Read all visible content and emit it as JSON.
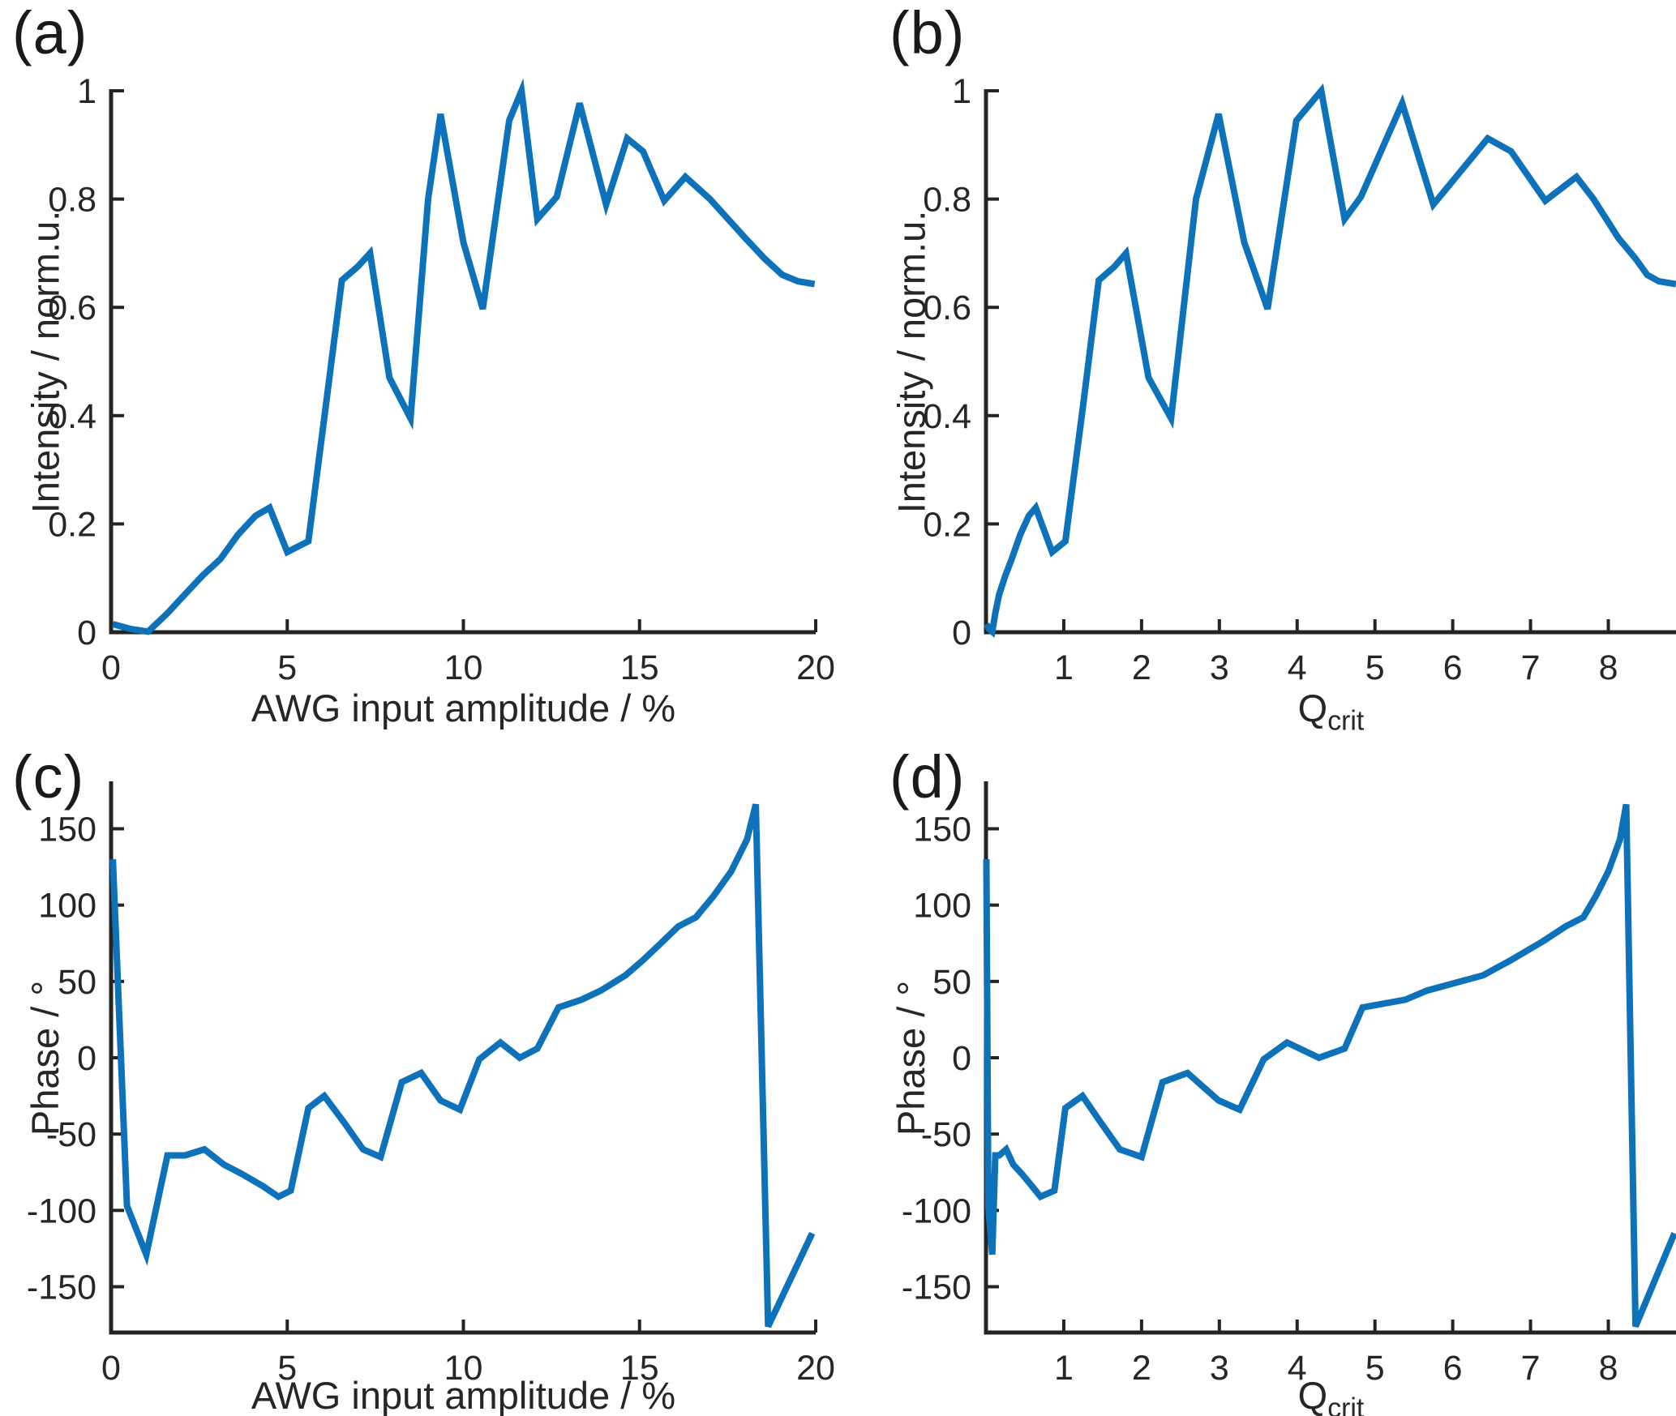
{
  "figure": {
    "background": "#ffffff",
    "line_color": "#0e72ba",
    "axis_color": "#242424",
    "text_color": "#262626"
  },
  "chart_data": [
    {
      "type": "line",
      "panel": "(a)",
      "title": "",
      "xlabel": "AWG input amplitude / %",
      "xlabel_sub": "",
      "ylabel": "Intensity / norm.u.",
      "xlim": [
        0,
        20
      ],
      "ylim": [
        0,
        1
      ],
      "xticks": [
        0,
        5,
        10,
        15,
        20
      ],
      "yticks": [
        0,
        0.2,
        0.4,
        0.6,
        0.8,
        1
      ],
      "grid": false,
      "legend": null,
      "x": [
        0.05,
        0.55,
        1.05,
        1.6,
        2.1,
        2.6,
        3.1,
        3.6,
        4.1,
        4.5,
        5.0,
        5.6,
        6.1,
        6.55,
        7.0,
        7.35,
        7.9,
        8.5,
        9.0,
        9.35,
        10.0,
        10.55,
        11.3,
        11.65,
        12.1,
        12.65,
        13.3,
        14.05,
        14.65,
        15.1,
        15.7,
        16.3,
        17.0,
        18.0,
        18.55,
        19.05,
        19.5,
        19.97
      ],
      "y": [
        0.015,
        0.006,
        0.001,
        0.035,
        0.07,
        0.105,
        0.135,
        0.18,
        0.215,
        0.23,
        0.148,
        0.168,
        0.42,
        0.65,
        0.675,
        0.7,
        0.47,
        0.395,
        0.8,
        0.957,
        0.72,
        0.597,
        0.945,
        1.0,
        0.763,
        0.804,
        0.977,
        0.79,
        0.912,
        0.888,
        0.797,
        0.841,
        0.8,
        0.728,
        0.69,
        0.66,
        0.648,
        0.643
      ]
    },
    {
      "type": "line",
      "panel": "(b)",
      "title": "",
      "xlabel": "Q",
      "xlabel_sub": "crit",
      "ylabel": "Intensity / norm.u.",
      "xlim": [
        0,
        8.87
      ],
      "ylim": [
        0,
        1
      ],
      "xticks": [
        1,
        2,
        3,
        4,
        5,
        6,
        7,
        8
      ],
      "yticks": [
        0,
        0.2,
        0.4,
        0.6,
        0.8,
        1
      ],
      "grid": false,
      "legend": null,
      "x": [
        0.005,
        0.04,
        0.08,
        0.12,
        0.17,
        0.25,
        0.33,
        0.44,
        0.55,
        0.64,
        0.85,
        1.02,
        1.25,
        1.45,
        1.65,
        1.8,
        2.09,
        2.38,
        2.7,
        2.99,
        3.32,
        3.62,
        3.99,
        4.31,
        4.61,
        4.82,
        5.35,
        5.75,
        6.45,
        6.75,
        7.19,
        7.59,
        7.81,
        8.13,
        8.35,
        8.5,
        8.65,
        8.87
      ],
      "y": [
        0.015,
        0.006,
        0.001,
        0.035,
        0.07,
        0.105,
        0.135,
        0.18,
        0.215,
        0.23,
        0.148,
        0.168,
        0.42,
        0.65,
        0.675,
        0.7,
        0.47,
        0.395,
        0.8,
        0.957,
        0.72,
        0.597,
        0.945,
        1.0,
        0.763,
        0.804,
        0.977,
        0.79,
        0.912,
        0.888,
        0.797,
        0.841,
        0.8,
        0.728,
        0.69,
        0.66,
        0.648,
        0.643
      ]
    },
    {
      "type": "line",
      "panel": "(c)",
      "title": "",
      "xlabel": "AWG input amplitude / %",
      "xlabel_sub": "",
      "ylabel": "Phase / °",
      "xlim": [
        0,
        20
      ],
      "ylim": [
        -180,
        180
      ],
      "xticks": [
        0,
        5,
        10,
        15,
        20
      ],
      "yticks": [
        -150,
        -100,
        -50,
        0,
        50,
        100,
        150
      ],
      "grid": false,
      "legend": null,
      "x": [
        0.05,
        0.45,
        1.0,
        1.6,
        2.1,
        2.65,
        3.2,
        3.7,
        4.3,
        4.75,
        5.1,
        5.6,
        6.05,
        6.6,
        7.15,
        7.65,
        8.25,
        8.8,
        9.35,
        9.9,
        10.45,
        11.05,
        11.6,
        12.1,
        12.7,
        13.35,
        13.9,
        14.6,
        15.1,
        15.65,
        16.1,
        16.6,
        17.1,
        17.6,
        18.05,
        18.3,
        18.65,
        19.9
      ],
      "y": [
        130,
        -97,
        -129,
        -64,
        -64,
        -60,
        -70,
        -76,
        -84,
        -91,
        -87,
        -33,
        -25,
        -42,
        -60,
        -65,
        -16,
        -10,
        -28,
        -34,
        -1,
        10,
        0,
        6,
        33,
        38,
        44,
        54,
        64,
        76,
        86,
        92,
        106,
        122,
        143,
        166,
        -176,
        -115
      ]
    },
    {
      "type": "line",
      "panel": "(d)",
      "title": "",
      "xlabel": "Q",
      "xlabel_sub": "crit",
      "ylabel": "Phase / °",
      "xlim": [
        0,
        8.87
      ],
      "ylim": [
        -180,
        180
      ],
      "xticks": [
        1,
        2,
        3,
        4,
        5,
        6,
        7,
        8
      ],
      "yticks": [
        -150,
        -100,
        -50,
        0,
        50,
        100,
        150
      ],
      "grid": false,
      "legend": null,
      "x": [
        0.005,
        0.03,
        0.08,
        0.12,
        0.17,
        0.26,
        0.35,
        0.46,
        0.59,
        0.7,
        0.88,
        1.02,
        1.24,
        1.47,
        1.72,
        2.0,
        2.27,
        2.59,
        2.99,
        3.26,
        3.57,
        3.87,
        4.28,
        4.61,
        4.84,
        5.39,
        5.67,
        6.39,
        6.75,
        7.15,
        7.45,
        7.68,
        7.84,
        8.0,
        8.15,
        8.23,
        8.35,
        8.85
      ],
      "y": [
        130,
        -97,
        -129,
        -64,
        -64,
        -60,
        -70,
        -76,
        -84,
        -91,
        -87,
        -33,
        -25,
        -42,
        -60,
        -65,
        -16,
        -10,
        -28,
        -34,
        -1,
        10,
        0,
        6,
        33,
        38,
        44,
        54,
        64,
        76,
        86,
        92,
        106,
        122,
        143,
        166,
        -176,
        -115
      ]
    }
  ]
}
